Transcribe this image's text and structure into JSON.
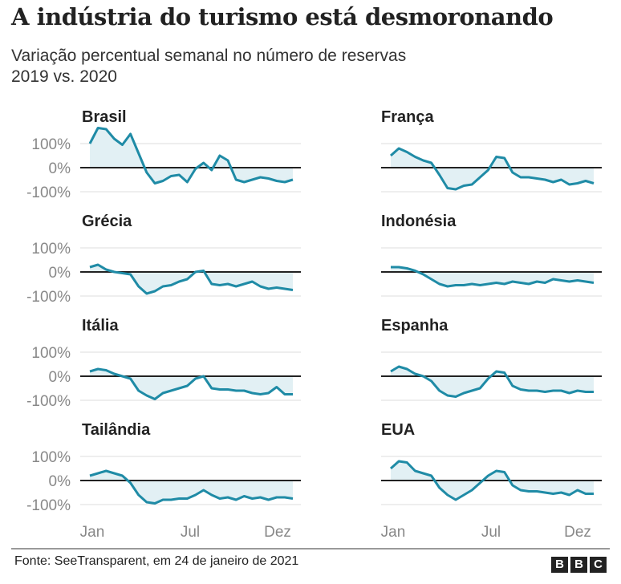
{
  "title": "A indústria do turismo está desmoronando",
  "subtitle_line1": "Variação percentual semanal no número de reservas",
  "subtitle_line2": "2019 vs. 2020",
  "source": "Fonte: SeeTransparent, em 24 de janeiro de 2021",
  "logo": "BBC",
  "colors": {
    "line": "#1f8ba6",
    "fill": "#e2f0f4",
    "zero": "#222222",
    "grid": "#dddddd"
  },
  "chart_data": [
    {
      "type": "area",
      "title": "Brasil",
      "x_ticks": [
        "Jan",
        "Jul",
        "Dez"
      ],
      "y_ticks": [
        "100%",
        "0%",
        "-100%"
      ],
      "ylim": [
        -100,
        100
      ],
      "values": [
        100,
        165,
        160,
        120,
        95,
        140,
        60,
        -20,
        -65,
        -55,
        -35,
        -30,
        -60,
        -5,
        20,
        -10,
        50,
        30,
        -50,
        -60,
        -50,
        -40,
        -45,
        -55,
        -60,
        -50
      ]
    },
    {
      "type": "area",
      "title": "França",
      "x_ticks": [
        "Jan",
        "Jul",
        "Dez"
      ],
      "y_ticks": [
        "100%",
        "0%",
        "-100%"
      ],
      "ylim": [
        -100,
        100
      ],
      "values": [
        50,
        80,
        65,
        45,
        30,
        20,
        -30,
        -85,
        -90,
        -75,
        -70,
        -40,
        -10,
        45,
        40,
        -20,
        -40,
        -40,
        -45,
        -50,
        -60,
        -50,
        -70,
        -65,
        -55,
        -65
      ]
    },
    {
      "type": "area",
      "title": "Grécia",
      "x_ticks": [
        "Jan",
        "Jul",
        "Dez"
      ],
      "y_ticks": [
        "100%",
        "0%",
        "-100%"
      ],
      "ylim": [
        -100,
        100
      ],
      "values": [
        20,
        30,
        10,
        0,
        -5,
        -10,
        -60,
        -90,
        -80,
        -60,
        -55,
        -40,
        -30,
        0,
        5,
        -50,
        -55,
        -50,
        -60,
        -50,
        -40,
        -60,
        -70,
        -65,
        -70,
        -75
      ]
    },
    {
      "type": "area",
      "title": "Indonésia",
      "x_ticks": [
        "Jan",
        "Jul",
        "Dez"
      ],
      "y_ticks": [
        "100%",
        "0%",
        "-100%"
      ],
      "ylim": [
        -100,
        100
      ],
      "values": [
        20,
        20,
        15,
        5,
        -10,
        -30,
        -50,
        -60,
        -55,
        -55,
        -50,
        -55,
        -50,
        -45,
        -50,
        -40,
        -45,
        -50,
        -40,
        -45,
        -30,
        -35,
        -40,
        -35,
        -40,
        -45
      ]
    },
    {
      "type": "area",
      "title": "Itália",
      "x_ticks": [
        "Jan",
        "Jul",
        "Dez"
      ],
      "y_ticks": [
        "100%",
        "0%",
        "-100%"
      ],
      "ylim": [
        -100,
        100
      ],
      "values": [
        20,
        30,
        25,
        10,
        0,
        -10,
        -60,
        -80,
        -95,
        -70,
        -60,
        -50,
        -40,
        -10,
        0,
        -50,
        -55,
        -55,
        -60,
        -60,
        -70,
        -75,
        -70,
        -45,
        -75,
        -75
      ]
    },
    {
      "type": "area",
      "title": "Espanha",
      "x_ticks": [
        "Jan",
        "Jul",
        "Dez"
      ],
      "y_ticks": [
        "100%",
        "0%",
        "-100%"
      ],
      "ylim": [
        -100,
        100
      ],
      "values": [
        20,
        40,
        30,
        10,
        0,
        -20,
        -60,
        -80,
        -85,
        -70,
        -60,
        -50,
        -10,
        20,
        15,
        -40,
        -55,
        -60,
        -60,
        -65,
        -60,
        -60,
        -70,
        -60,
        -65,
        -65
      ]
    },
    {
      "type": "area",
      "title": "Tailândia",
      "x_ticks": [
        "Jan",
        "Jul",
        "Dez"
      ],
      "y_ticks": [
        "100%",
        "0%",
        "-100%"
      ],
      "ylim": [
        -100,
        100
      ],
      "values": [
        20,
        30,
        40,
        30,
        20,
        -10,
        -60,
        -90,
        -95,
        -80,
        -80,
        -75,
        -75,
        -60,
        -40,
        -60,
        -75,
        -70,
        -80,
        -65,
        -75,
        -70,
        -80,
        -70,
        -70,
        -75
      ]
    },
    {
      "type": "area",
      "title": "EUA",
      "x_ticks": [
        "Jan",
        "Jul",
        "Dez"
      ],
      "y_ticks": [
        "100%",
        "0%",
        "-100%"
      ],
      "ylim": [
        -100,
        100
      ],
      "values": [
        50,
        80,
        75,
        40,
        30,
        20,
        -30,
        -60,
        -80,
        -60,
        -40,
        -10,
        20,
        40,
        35,
        -20,
        -40,
        -45,
        -45,
        -50,
        -55,
        -50,
        -60,
        -40,
        -55,
        -55
      ]
    }
  ]
}
